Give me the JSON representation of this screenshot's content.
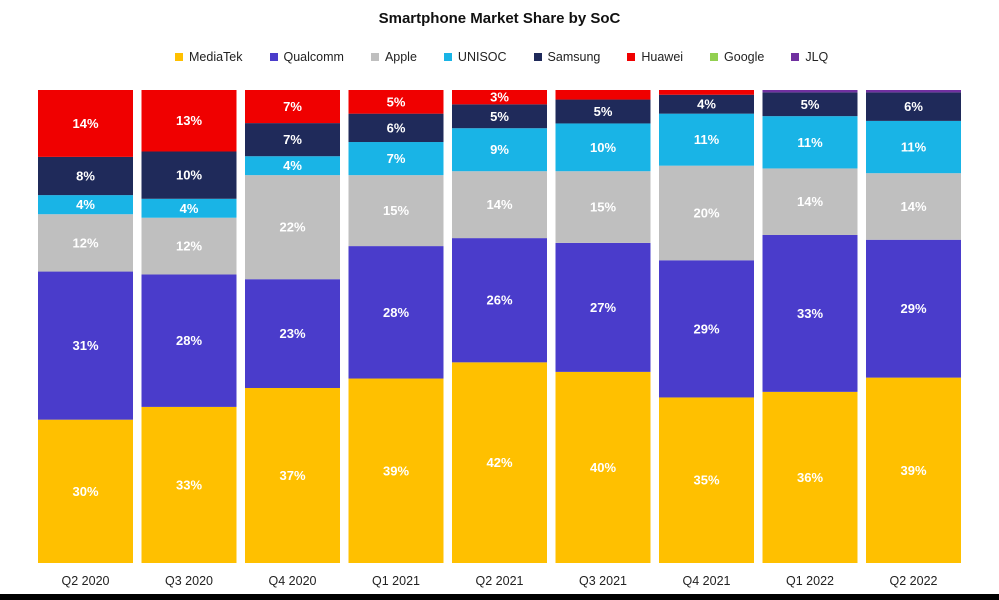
{
  "chart_data": {
    "type": "bar",
    "stacked": true,
    "title": "Smartphone Market Share by SoC",
    "categories": [
      "Q2 2020",
      "Q3 2020",
      "Q4 2020",
      "Q1 2021",
      "Q2 2021",
      "Q3 2021",
      "Q4 2021",
      "Q1 2022",
      "Q2 2022"
    ],
    "series": [
      {
        "name": "MediaTek",
        "color": "#FFC000",
        "values": [
          30,
          33,
          37,
          39,
          42,
          40,
          35,
          36,
          39
        ]
      },
      {
        "name": "Qualcomm",
        "color": "#4A3CCB",
        "values": [
          31,
          28,
          23,
          28,
          26,
          27,
          29,
          33,
          29
        ]
      },
      {
        "name": "Apple",
        "color": "#BFBFBF",
        "values": [
          12,
          12,
          22,
          15,
          14,
          15,
          20,
          14,
          14
        ]
      },
      {
        "name": "UNISOC",
        "color": "#19B4E6",
        "values": [
          4,
          4,
          4,
          7,
          9,
          10,
          11,
          11,
          11
        ]
      },
      {
        "name": "Samsung",
        "color": "#1F2A5A",
        "values": [
          8,
          10,
          7,
          6,
          5,
          5,
          4,
          5,
          6
        ]
      },
      {
        "name": "Huawei",
        "color": "#F00000",
        "values": [
          14,
          13,
          7,
          5,
          3,
          2,
          1,
          0,
          0
        ]
      },
      {
        "name": "Google",
        "color": "#92D050",
        "values": [
          0,
          0,
          0,
          0,
          0,
          0,
          0,
          0,
          0
        ]
      },
      {
        "name": "JLQ",
        "color": "#7030A0",
        "values": [
          0,
          0,
          0,
          0,
          0,
          0,
          0,
          0.5,
          0.5
        ]
      }
    ],
    "labels": [
      [
        "30%",
        "33%",
        "37%",
        "39%",
        "42%",
        "40%",
        "35%",
        "36%",
        "39%"
      ],
      [
        "31%",
        "28%",
        "23%",
        "28%",
        "26%",
        "27%",
        "29%",
        "33%",
        "29%"
      ],
      [
        "12%",
        "12%",
        "22%",
        "15%",
        "14%",
        "15%",
        "20%",
        "14%",
        "14%"
      ],
      [
        "4%",
        "4%",
        "4%",
        "7%",
        "9%",
        "10%",
        "11%",
        "11%",
        "11%"
      ],
      [
        "8%",
        "10%",
        "7%",
        "6%",
        "5%",
        "5%",
        "4%",
        "5%",
        "6%"
      ],
      [
        "14%",
        "13%",
        "7%",
        "5%",
        "3%",
        "",
        "",
        "",
        ""
      ],
      [
        "",
        "",
        "",
        "",
        "",
        "",
        "",
        "",
        ""
      ],
      [
        "",
        "",
        "",
        "",
        "",
        "",
        "",
        "",
        ""
      ]
    ],
    "ylim": [
      0,
      100
    ],
    "legend": "top",
    "grid": false
  }
}
